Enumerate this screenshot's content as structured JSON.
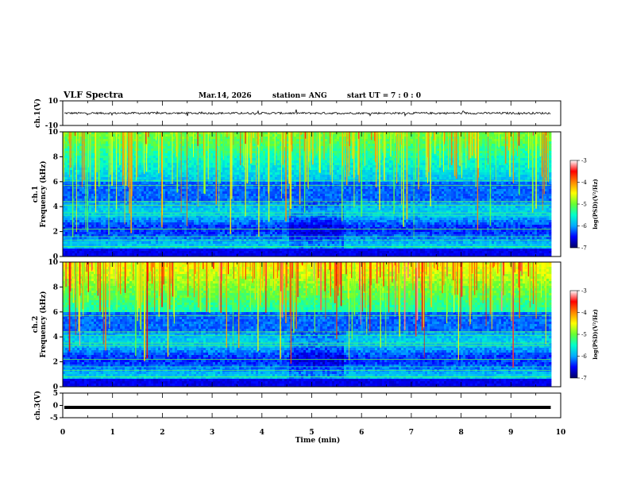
{
  "chart_data": {
    "type": "heatmap",
    "title": "VLF Spectra",
    "date": "Mar.14, 2026",
    "station": "station= ANG",
    "start_label": "start  UT =",
    "start_time": "7 : 0  : 0",
    "xlabel": "Time  (min)",
    "xlim": [
      0,
      10
    ],
    "x_ticks": [
      "0",
      "1",
      "2",
      "3",
      "4",
      "5",
      "6",
      "7",
      "8",
      "9",
      "10"
    ],
    "panels": [
      {
        "id": "ch1-waveform",
        "type": "line",
        "ylabel": "ch.1(V)",
        "ylim": [
          -10,
          10
        ],
        "y_ticks": [
          "10",
          "-10"
        ],
        "mean_value": 0
      },
      {
        "id": "ch1-spectrogram",
        "type": "heatmap",
        "ylabel_top": "ch.1",
        "ylabel": "Frequency (kHz)",
        "ylim": [
          0,
          10
        ],
        "y_ticks": [
          "0",
          "2",
          "4",
          "6",
          "8",
          "10"
        ],
        "colorbar": {
          "label": "log(PSD)(V²/Hz)",
          "range": [
            -7,
            -3
          ],
          "ticks": [
            "-3",
            "-4",
            "-5",
            "-6",
            "-7"
          ]
        }
      },
      {
        "id": "ch2-spectrogram",
        "type": "heatmap",
        "ylabel_top": "ch.2",
        "ylabel": "Frequency (kHz)",
        "ylim": [
          0,
          10
        ],
        "y_ticks": [
          "0",
          "2",
          "4",
          "6",
          "8",
          "10"
        ],
        "colorbar": {
          "label": "log(PSD)(V²/Hz)",
          "range": [
            -7,
            -3
          ],
          "ticks": [
            "-3",
            "-4",
            "-5",
            "-6",
            "-7"
          ]
        }
      },
      {
        "id": "ch3-waveform",
        "type": "line",
        "ylabel": "ch.3(V)",
        "ylim": [
          -5,
          5
        ],
        "y_ticks": [
          "5",
          "0",
          "-5"
        ],
        "mean_value": -0.8
      }
    ],
    "data_end_min": 9.8,
    "colormap": [
      "#000066",
      "#0000ff",
      "#00aaff",
      "#00ffcc",
      "#66ff33",
      "#ffff00",
      "#ff8800",
      "#ff0000",
      "#ffffff"
    ]
  }
}
